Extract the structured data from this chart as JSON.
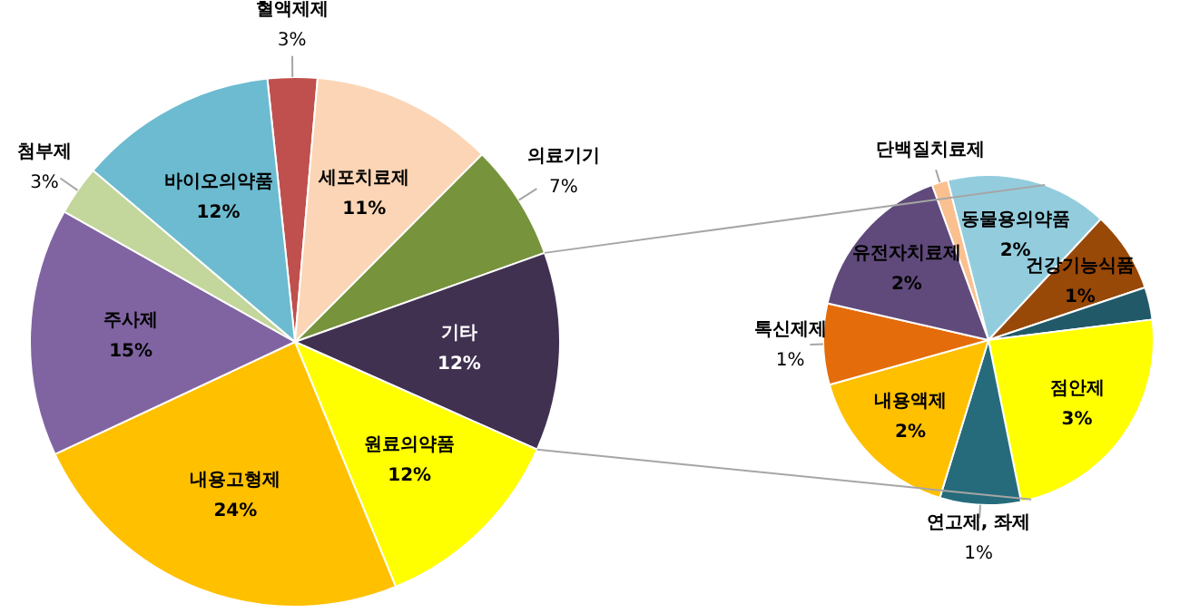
{
  "chart_data": [
    {
      "type": "pie",
      "categories": [
        "혈액제제",
        "세포치료제",
        "의료기기",
        "기타",
        "원료의약품",
        "내용고형제",
        "주사제",
        "첨부제",
        "바이오의약품"
      ],
      "values": [
        3,
        11,
        7,
        12,
        12,
        24,
        15,
        3,
        12
      ],
      "colors": [
        "#c0504d",
        "#fbd5b5",
        "#77933c",
        "#403151",
        "#ffff00",
        "#ffc000",
        "#8064a2",
        "#c3d69b",
        "#6dbbd0"
      ],
      "value_labels": [
        "3%",
        "11%",
        "7%",
        "12%",
        "12%",
        "24%",
        "15%",
        "3%",
        "12%"
      ]
    },
    {
      "type": "pie",
      "categories": [
        "단백질치료제",
        "동물용의약품",
        "건강기능식품",
        null,
        "점안제",
        "연고제, 좌제",
        "내용액제",
        "톡신제제",
        "유전자치료제"
      ],
      "values": [
        0.2,
        2,
        1,
        0.4,
        3,
        1,
        2,
        1,
        2
      ],
      "colors": [
        "#fac090",
        "#93cddd",
        "#984807",
        "#215968",
        "#ffff00",
        "#256b7b",
        "#ffc000",
        "#e46c0a",
        "#604a7b"
      ],
      "value_labels": [
        null,
        "2%",
        "1%",
        null,
        "3%",
        "1%",
        "2%",
        "1%",
        "2%"
      ]
    }
  ]
}
